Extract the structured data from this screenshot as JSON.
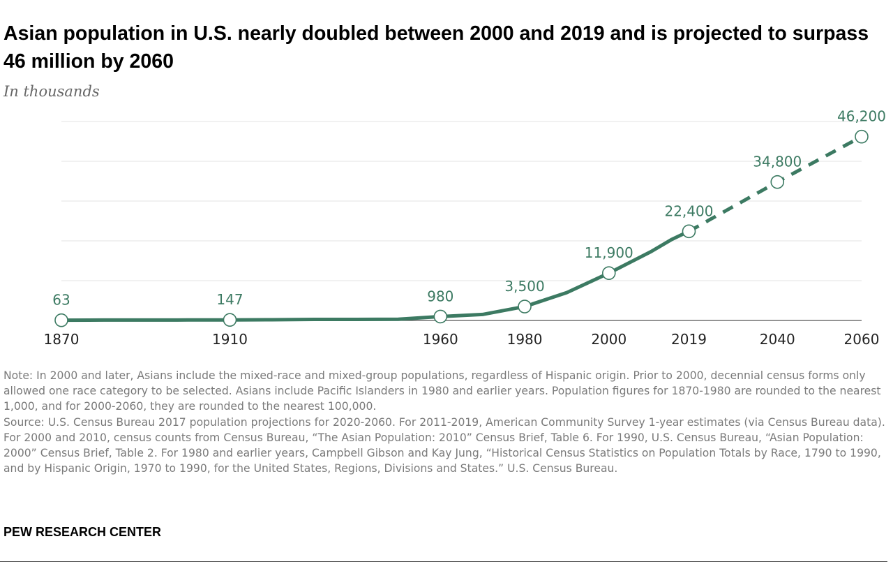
{
  "title": "Asian population in U.S. nearly doubled between 2000 and 2019 and is projected to surpass 46 million by 2060",
  "subtitle": "In thousands",
  "note": "Note: In 2000 and later, Asians include the mixed-race and mixed-group populations, regardless of Hispanic origin. Prior to 2000, decennial census forms only allowed one race category to be selected. Asians include Pacific Islanders in 1980 and earlier years. Population figures for 1870-1980 are rounded to the nearest 1,000, and for 2000-2060, they are rounded to the nearest 100,000.",
  "source": "Source: U.S. Census Bureau 2017 population projections for 2020-2060. For 2011-2019, American Community Survey 1-year estimates (via Census Bureau data). For 2000 and 2010, census counts from Census Bureau, “The Asian Population: 2010” Census Brief, Table 6. For 1990, U.S. Census Bureau, “Asian Population: 2000” Census Brief, Table 2. For 1980 and earlier years, Campbell Gibson and Kay Jung, “Historical Census Statistics on Population Totals by Race, 1790 to 1990, and by Hispanic Origin, 1970 to 1990, for the United States, Regions, Divisions and States.” U.S. Census Bureau.",
  "brand": "PEW RESEARCH CENTER",
  "colors": {
    "line": "#3c7a62",
    "grid": "#e3e3e3",
    "label": "#3c7a62"
  },
  "chart_data": {
    "type": "line",
    "title": "Asian population in U.S. nearly doubled between 2000 and 2019 and is projected to surpass 46 million by 2060",
    "subtitle": "In thousands",
    "xlabel": "",
    "ylabel": "",
    "ylim": [
      0,
      50000
    ],
    "xlim": [
      1870,
      2060
    ],
    "grid": true,
    "x_ticks": [
      "1870",
      "1910",
      "1960",
      "1980",
      "2000",
      "2019",
      "2040",
      "2060"
    ],
    "series": [
      {
        "style": "solid",
        "points": [
          {
            "x": 1870,
            "y": 63
          },
          {
            "x": 1880,
            "y": 105
          },
          {
            "x": 1890,
            "y": 110
          },
          {
            "x": 1900,
            "y": 115
          },
          {
            "x": 1910,
            "y": 147
          },
          {
            "x": 1920,
            "y": 182
          },
          {
            "x": 1930,
            "y": 265
          },
          {
            "x": 1940,
            "y": 255
          },
          {
            "x": 1950,
            "y": 321
          },
          {
            "x": 1960,
            "y": 980
          },
          {
            "x": 1970,
            "y": 1500
          },
          {
            "x": 1980,
            "y": 3500
          },
          {
            "x": 1990,
            "y": 7000
          },
          {
            "x": 2000,
            "y": 11900
          },
          {
            "x": 2010,
            "y": 17300
          },
          {
            "x": 2015,
            "y": 20400
          },
          {
            "x": 2019,
            "y": 22400
          }
        ]
      },
      {
        "style": "dashed",
        "points": [
          {
            "x": 2019,
            "y": 22400
          },
          {
            "x": 2040,
            "y": 34800
          },
          {
            "x": 2060,
            "y": 46200
          }
        ]
      }
    ],
    "markers": [
      {
        "x": 1870,
        "y": 63,
        "label": "63"
      },
      {
        "x": 1910,
        "y": 147,
        "label": "147"
      },
      {
        "x": 1960,
        "y": 980,
        "label": "980"
      },
      {
        "x": 1980,
        "y": 3500,
        "label": "3,500"
      },
      {
        "x": 2000,
        "y": 11900,
        "label": "11,900"
      },
      {
        "x": 2019,
        "y": 22400,
        "label": "22,400"
      },
      {
        "x": 2040,
        "y": 34800,
        "label": "34,800"
      },
      {
        "x": 2060,
        "y": 46200,
        "label": "46,200"
      }
    ]
  }
}
